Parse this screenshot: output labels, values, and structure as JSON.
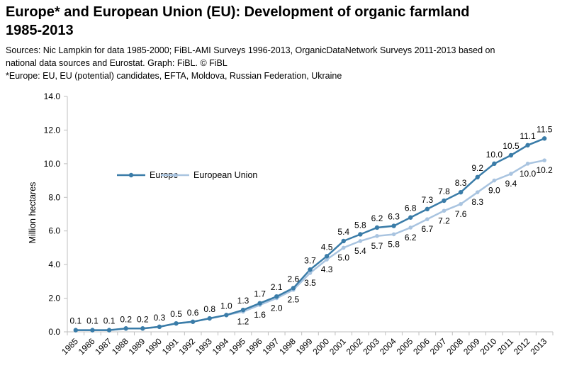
{
  "title": "Europe* and European Union (EU): Development of organic farmland 1985-2013",
  "sources_line1": "Sources: Nic Lampkin for data 1985-2000;  FiBL-AMI Surveys  1996-2013, OrganicDataNetwork Surveys  2011-2013 based on national data sources and Eurostat. Graph: FiBL. © FiBL",
  "sources_line2": "*Europe: EU, EU (potential) candidates, EFTA, Moldova, Russian Federation, Ukraine",
  "colors": {
    "europe": "#3a7ca8",
    "eu": "#a9c4e0",
    "axis": "#bfbfbf"
  },
  "chart_data": {
    "type": "line",
    "ylabel": "Million hectares",
    "ylim": [
      0,
      14
    ],
    "yticks": [
      "0.0",
      "2.0",
      "4.0",
      "6.0",
      "8.0",
      "10.0",
      "12.0",
      "14.0"
    ],
    "ytick_values": [
      0,
      2,
      4,
      6,
      8,
      10,
      12,
      14
    ],
    "legend": "left, inside plot",
    "grid": false,
    "x": [
      "1985",
      "1986",
      "1987",
      "1988",
      "1989",
      "1990",
      "1991",
      "1992",
      "1993",
      "1994",
      "1995",
      "1996",
      "1997",
      "1998",
      "1999",
      "2000",
      "2001",
      "2002",
      "2003",
      "2004",
      "2005",
      "2006",
      "2007",
      "2008",
      "2009",
      "2010",
      "2011",
      "2012",
      "2013"
    ],
    "series": [
      {
        "name": "Europe",
        "values": [
          0.1,
          0.1,
          0.1,
          0.2,
          0.2,
          0.3,
          0.5,
          0.6,
          0.8,
          1.0,
          1.3,
          1.7,
          2.1,
          2.6,
          3.7,
          4.5,
          5.4,
          5.8,
          6.2,
          6.3,
          6.8,
          7.3,
          7.8,
          8.3,
          9.2,
          10.0,
          10.5,
          11.1,
          11.5
        ],
        "labels": [
          "0.1",
          "0.1",
          "0.1",
          "0.2",
          "0.2",
          "0.3",
          "0.5",
          "0.6",
          "0.8",
          "1.0",
          "1.3",
          "1.7",
          "2.1",
          "2.6",
          "3.7",
          "4.5",
          "5.4",
          "5.8",
          "6.2",
          "6.3",
          "6.8",
          "7.3",
          "7.8",
          "8.3",
          "9.2",
          "10.0",
          "10.5",
          "11.1",
          "11.5"
        ]
      },
      {
        "name": "European Union",
        "values": [
          null,
          null,
          null,
          null,
          null,
          null,
          null,
          null,
          null,
          null,
          1.2,
          1.6,
          2.0,
          2.5,
          3.5,
          4.3,
          5.0,
          5.4,
          5.7,
          5.8,
          6.2,
          6.7,
          7.2,
          7.6,
          8.3,
          9.0,
          9.4,
          10.0,
          10.2
        ],
        "labels": [
          "",
          "",
          "",
          "",
          "",
          "",
          "",
          "",
          "",
          "",
          "1.2",
          "1.6",
          "2.0",
          "2.5",
          "3.5",
          "4.3",
          "5.0",
          "5.4",
          "5.7",
          "5.8",
          "6.2",
          "6.7",
          "7.2",
          "7.6",
          "8.3",
          "9.0",
          "9.4",
          "10.0",
          "10.2"
        ]
      }
    ],
    "eu_line_early": [
      0.1,
      0.1,
      0.1,
      0.2,
      0.2,
      0.3,
      0.5,
      0.6,
      0.8,
      1.0
    ]
  }
}
